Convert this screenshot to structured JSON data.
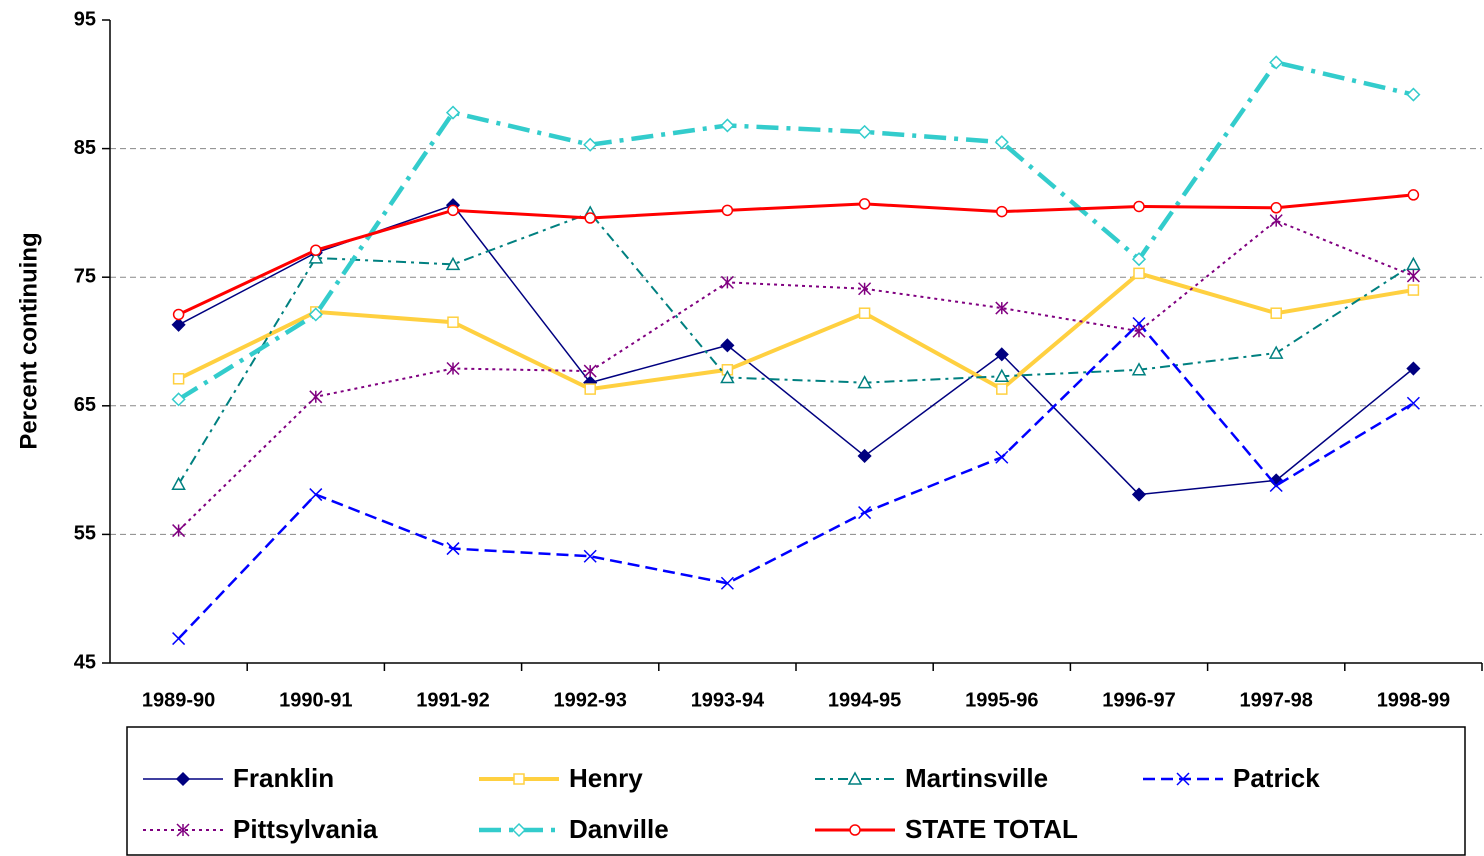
{
  "chart_data": {
    "type": "line",
    "y_label": "Percent continuing",
    "categories": [
      "1989-90",
      "1990-91",
      "1991-92",
      "1992-93",
      "1993-94",
      "1994-95",
      "1995-96",
      "1996-97",
      "1997-98",
      "1998-99"
    ],
    "ylim": [
      45,
      95
    ],
    "yticks": [
      45,
      55,
      65,
      75,
      85,
      95
    ],
    "grid": true,
    "legend": "bottom",
    "series": [
      {
        "name": "Franklin",
        "color": "#000080",
        "width": 1.5,
        "dash": "",
        "marker": "diamond-filled",
        "values": [
          71.3,
          76.9,
          80.6,
          66.8,
          69.7,
          61.1,
          69.0,
          58.1,
          59.2,
          67.9
        ]
      },
      {
        "name": "Henry",
        "color": "#FFD040",
        "width": 4,
        "dash": "",
        "marker": "square",
        "values": [
          67.1,
          72.3,
          71.5,
          66.3,
          67.8,
          72.2,
          66.3,
          75.3,
          72.2,
          74.0
        ]
      },
      {
        "name": "Martinsville",
        "color": "#008080",
        "width": 2,
        "dash": "10 5 3 5",
        "marker": "triangle",
        "values": [
          58.9,
          76.5,
          76.0,
          80.0,
          67.2,
          66.8,
          67.3,
          67.8,
          69.1,
          76.0
        ]
      },
      {
        "name": "Patrick",
        "color": "#0000FF",
        "width": 2.5,
        "dash": "12 6",
        "marker": "x",
        "values": [
          46.9,
          58.1,
          53.9,
          53.3,
          51.2,
          56.7,
          61.0,
          71.4,
          58.8,
          65.2
        ]
      },
      {
        "name": "Pittsylvania",
        "color": "#800080",
        "width": 2,
        "dash": "3 4",
        "marker": "star",
        "values": [
          55.3,
          65.7,
          67.9,
          67.7,
          74.6,
          74.1,
          72.6,
          70.8,
          79.4,
          75.1
        ]
      },
      {
        "name": "Danville",
        "color": "#33CCCC",
        "width": 4.5,
        "dash": "22 8 4 8",
        "marker": "diamond",
        "values": [
          65.5,
          72.1,
          87.8,
          85.3,
          86.8,
          86.3,
          85.5,
          76.4,
          91.7,
          89.2
        ]
      },
      {
        "name": "STATE TOTAL",
        "color": "#FF0000",
        "width": 3,
        "dash": "",
        "marker": "circle",
        "values": [
          72.1,
          77.1,
          80.2,
          79.6,
          80.2,
          80.7,
          80.1,
          80.5,
          80.4,
          81.4
        ]
      }
    ]
  }
}
